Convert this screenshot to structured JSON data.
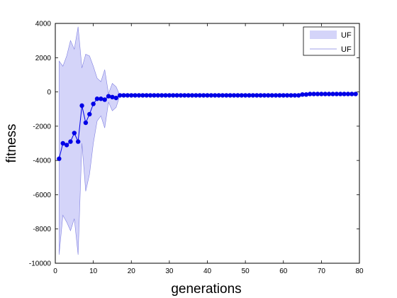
{
  "chart_data": {
    "type": "line",
    "title": "",
    "xlabel": "generations",
    "ylabel": "fitness",
    "xlim": [
      0,
      80
    ],
    "ylim": [
      -10000,
      4000
    ],
    "xticks": [
      0,
      10,
      20,
      30,
      40,
      50,
      60,
      70,
      80
    ],
    "yticks": [
      -10000,
      -8000,
      -6000,
      -4000,
      -2000,
      0,
      2000,
      4000
    ],
    "grid": false,
    "legend_position": "top-right",
    "colors": {
      "band_fill": "#d4d4f9",
      "band_edge": "#8080e0",
      "line": "#0000e6",
      "marker": "#0000e6"
    },
    "band": {
      "name": "UF",
      "x": [
        1,
        2,
        3,
        4,
        5,
        6,
        7,
        8,
        9,
        10,
        11,
        12,
        13,
        14,
        15,
        16,
        17,
        18,
        19,
        20,
        21,
        22,
        23,
        24,
        25,
        26,
        27,
        28,
        29,
        30,
        31,
        32,
        33,
        34,
        35,
        36,
        37,
        38,
        39,
        40,
        41,
        42,
        43,
        44,
        45,
        46,
        47,
        48,
        49,
        50,
        51,
        52,
        53,
        54,
        55,
        56,
        57,
        58,
        59,
        60,
        61,
        62,
        63,
        64,
        65,
        66,
        67,
        68,
        69,
        70,
        71,
        72,
        73,
        74,
        75,
        76,
        77,
        78,
        79
      ],
      "upper": [
        1800,
        1500,
        2100,
        3000,
        2500,
        3800,
        1400,
        2200,
        2100,
        1500,
        800,
        600,
        1300,
        -100,
        500,
        300,
        -200,
        -200,
        -200,
        -200,
        -200,
        -200,
        -200,
        -200,
        -200,
        -200,
        -200,
        -200,
        -200,
        -200,
        -200,
        -200,
        -200,
        -200,
        -200,
        -200,
        -200,
        -200,
        -200,
        -200,
        -200,
        -200,
        -200,
        -200,
        -200,
        -200,
        -200,
        -200,
        -200,
        -200,
        -200,
        -200,
        -200,
        -200,
        -200,
        -200,
        -200,
        -200,
        -200,
        -200,
        -200,
        -200,
        -200,
        -200,
        -150,
        -150,
        -120,
        -120,
        -120,
        -120,
        -120,
        -120,
        -120,
        -120,
        -120,
        -120,
        -120,
        -120,
        -120
      ],
      "lower": [
        -9500,
        -7200,
        -7600,
        -8100,
        -7400,
        -9500,
        -3000,
        -5800,
        -4800,
        -3000,
        -1700,
        -1400,
        -2100,
        -600,
        -1100,
        -900,
        -200,
        -200,
        -200,
        -200,
        -200,
        -200,
        -200,
        -200,
        -200,
        -200,
        -200,
        -200,
        -200,
        -200,
        -200,
        -200,
        -200,
        -200,
        -200,
        -200,
        -200,
        -200,
        -200,
        -200,
        -200,
        -200,
        -200,
        -200,
        -200,
        -200,
        -200,
        -200,
        -200,
        -200,
        -200,
        -200,
        -200,
        -200,
        -200,
        -200,
        -200,
        -200,
        -200,
        -200,
        -200,
        -200,
        -200,
        -200,
        -150,
        -150,
        -120,
        -120,
        -120,
        -120,
        -120,
        -120,
        -120,
        -120,
        -120,
        -120,
        -120,
        -120,
        -120
      ]
    },
    "series": [
      {
        "name": "UF",
        "x": [
          1,
          2,
          3,
          4,
          5,
          6,
          7,
          8,
          9,
          10,
          11,
          12,
          13,
          14,
          15,
          16,
          17,
          18,
          19,
          20,
          21,
          22,
          23,
          24,
          25,
          26,
          27,
          28,
          29,
          30,
          31,
          32,
          33,
          34,
          35,
          36,
          37,
          38,
          39,
          40,
          41,
          42,
          43,
          44,
          45,
          46,
          47,
          48,
          49,
          50,
          51,
          52,
          53,
          54,
          55,
          56,
          57,
          58,
          59,
          60,
          61,
          62,
          63,
          64,
          65,
          66,
          67,
          68,
          69,
          70,
          71,
          72,
          73,
          74,
          75,
          76,
          77,
          78,
          79
        ],
        "values": [
          -3900,
          -3000,
          -3100,
          -2900,
          -2400,
          -2900,
          -800,
          -1800,
          -1300,
          -700,
          -400,
          -400,
          -450,
          -250,
          -300,
          -350,
          -200,
          -200,
          -200,
          -200,
          -200,
          -200,
          -200,
          -200,
          -200,
          -200,
          -200,
          -200,
          -200,
          -200,
          -200,
          -200,
          -200,
          -200,
          -200,
          -200,
          -200,
          -200,
          -200,
          -200,
          -200,
          -200,
          -200,
          -200,
          -200,
          -200,
          -200,
          -200,
          -200,
          -200,
          -200,
          -200,
          -200,
          -200,
          -200,
          -200,
          -200,
          -200,
          -200,
          -200,
          -200,
          -200,
          -200,
          -200,
          -150,
          -150,
          -120,
          -120,
          -120,
          -120,
          -120,
          -120,
          -120,
          -120,
          -120,
          -120,
          -120,
          -120,
          -120
        ]
      }
    ],
    "legend": [
      {
        "label": "UF",
        "kind": "band"
      },
      {
        "label": "UF",
        "kind": "line"
      }
    ]
  }
}
